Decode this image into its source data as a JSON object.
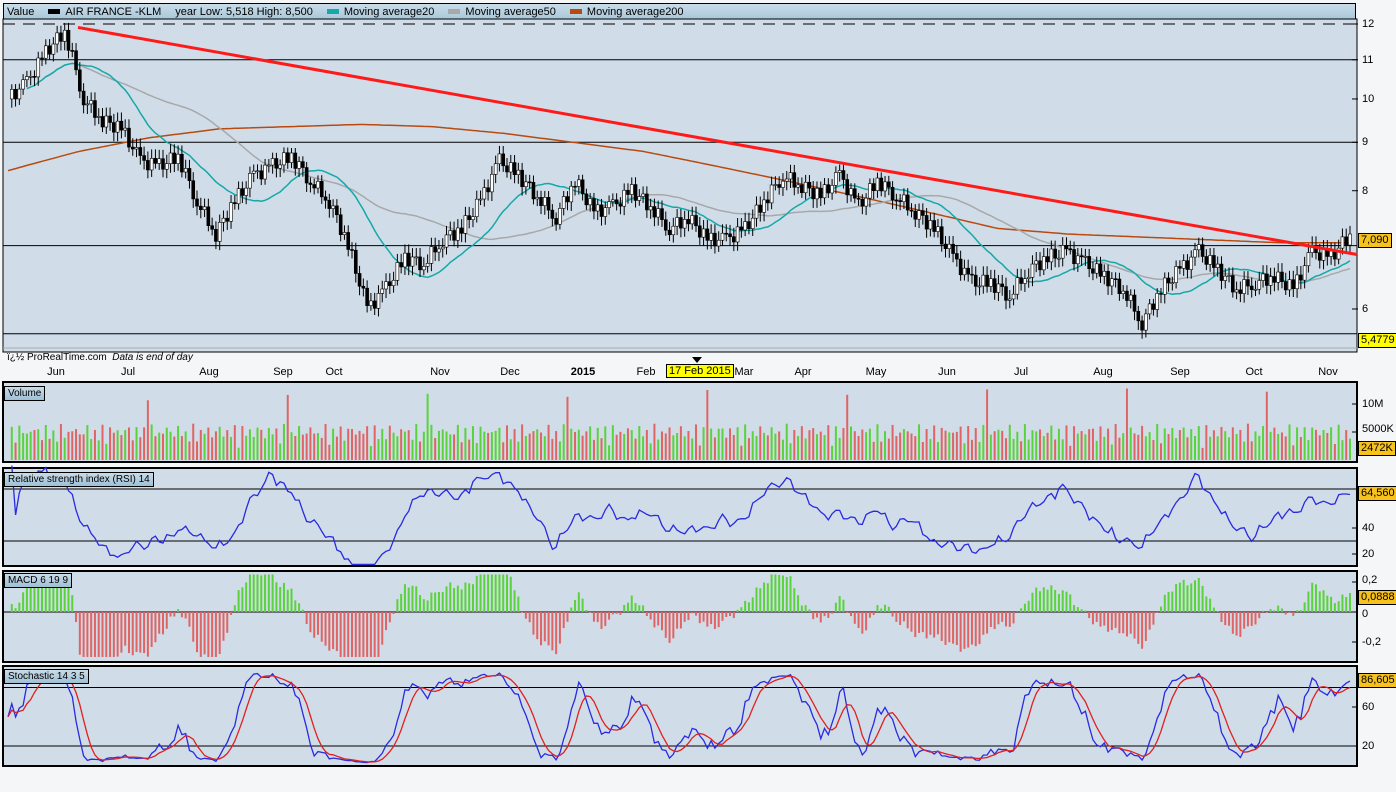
{
  "legend": {
    "value_label": "Value",
    "instrument": "AIR FRANCE -KLM",
    "year_range": "year Low: 5,518 High: 8,500",
    "ma20": "Moving average20",
    "ma50": "Moving average50",
    "ma200": "Moving average200"
  },
  "colors": {
    "candle_up": "#ffffff",
    "candle_down": "#000000",
    "ma20": "#14a8a8",
    "ma50": "#a8a8a8",
    "ma200": "#b84a10",
    "trend": "#ff1a1a",
    "vol_up": "#5ad23c",
    "vol_down": "#e06464",
    "line_blue": "#2a2ae0",
    "stoch_signal": "#e02020",
    "panel_bg": "#d0dde8",
    "tag": "#f7c21b"
  },
  "watermark": "ProRealTime.com",
  "watermark_note": "Data is end of day",
  "watermark_prefix": "ï¿½",
  "cursor_date": "17 Feb 2015",
  "chart_data": [
    {
      "type": "candlestick",
      "title": "AIR FRANCE -KLM",
      "yscale": "log",
      "ylim": [
        5.4,
        12.2
      ],
      "yticks": [
        6,
        7,
        8,
        9,
        10,
        11,
        12
      ],
      "ytick_labels": [
        "6",
        "7",
        "8",
        "9",
        "10",
        "11",
        "12"
      ],
      "x_labels": [
        "Jun",
        "Jul",
        "Aug",
        "Sep",
        "Oct",
        "Nov",
        "Dec",
        "2015",
        "Feb",
        "Mar",
        "Apr",
        "May",
        "Jun",
        "Jul",
        "Aug",
        "Sep",
        "Oct",
        "Nov"
      ],
      "weekly_closes": [
        10.0,
        10.4,
        11.2,
        11.8,
        10.0,
        9.5,
        9.3,
        8.6,
        8.5,
        8.7,
        7.8,
        7.2,
        7.8,
        8.3,
        8.5,
        8.7,
        8.2,
        7.8,
        7.0,
        6.0,
        6.3,
        6.8,
        6.7,
        7.1,
        7.3,
        7.8,
        8.6,
        8.3,
        7.9,
        7.5,
        8.2,
        7.6,
        7.7,
        8.0,
        7.7,
        7.3,
        7.5,
        7.1,
        7.1,
        7.3,
        7.8,
        8.3,
        8.1,
        7.9,
        8.3,
        7.7,
        8.2,
        7.9,
        7.6,
        7.3,
        6.8,
        6.4,
        6.4,
        6.2,
        6.6,
        6.8,
        6.9,
        6.7,
        6.5,
        6.3,
        5.8,
        6.3,
        6.6,
        6.9,
        6.6,
        6.3,
        6.4,
        6.5,
        6.3,
        6.9,
        6.8,
        7.2
      ],
      "ma200": [
        8.4,
        8.8,
        9.1,
        9.3,
        9.35,
        9.4,
        9.35,
        9.2,
        9.0,
        8.8,
        8.5,
        8.2,
        7.9,
        7.6,
        7.3,
        7.2,
        7.15,
        7.1,
        7.05,
        7.05
      ],
      "trendline": {
        "from": 11.9,
        "to": 6.85
      },
      "hlines": [
        12,
        11,
        9,
        7,
        5.65
      ],
      "last": "7,090",
      "low_marker": "5,4779"
    },
    {
      "type": "bar",
      "title": "Volume",
      "yticks_labels": [
        "10M",
        "5000K"
      ],
      "last": "2472K"
    },
    {
      "type": "line",
      "title": "Relative strength index (RSI) 14",
      "yticks": [
        20,
        40,
        60
      ],
      "levels": [
        30,
        70
      ],
      "last": "64,560"
    },
    {
      "type": "bar",
      "title": "MACD 6 19 9",
      "yticks_labels": [
        "0,2",
        "0",
        "-0,2"
      ],
      "last": "0,0888"
    },
    {
      "type": "line",
      "title": "Stochastic 14 3 5",
      "yticks": [
        20,
        60
      ],
      "levels": [
        20,
        80
      ],
      "last": "86,605"
    }
  ]
}
